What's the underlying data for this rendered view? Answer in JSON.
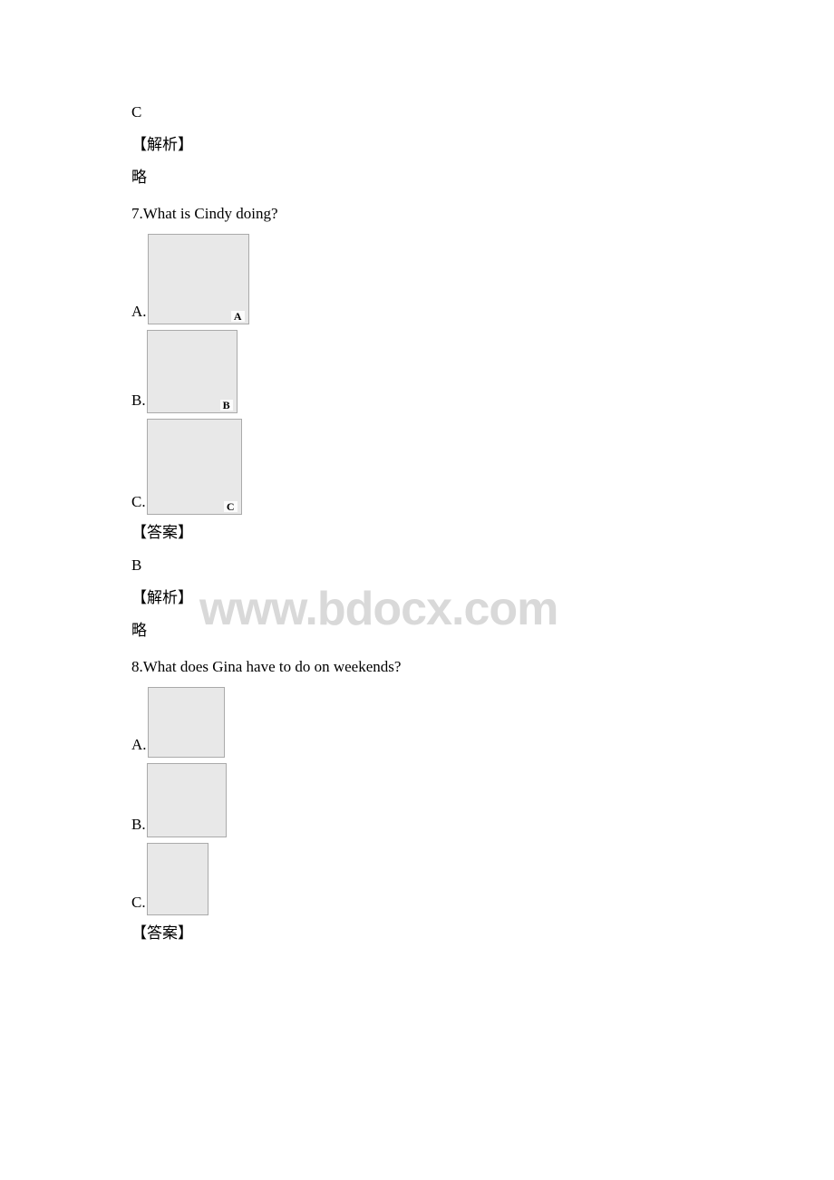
{
  "watermark": "www.bdocx.com",
  "q_prev": {
    "answer_letter": "C",
    "analysis_label": "【解析】",
    "analysis_text": "略"
  },
  "answer_label": "【答案】",
  "q7": {
    "number_text": "7.What is Cindy doing?",
    "options": [
      {
        "letter": "A.",
        "corner": "A",
        "size_class": "q7a"
      },
      {
        "letter": "B.",
        "corner": "B",
        "size_class": "q7b"
      },
      {
        "letter": "C.",
        "corner": "C",
        "size_class": "q7c"
      }
    ],
    "answer_letter": "B",
    "analysis_label": "【解析】",
    "analysis_text": "略"
  },
  "q8": {
    "number_text": "8.What does Gina have to do on weekends?",
    "options": [
      {
        "letter": "A.",
        "corner": "",
        "size_class": "q8a"
      },
      {
        "letter": "B.",
        "corner": "",
        "size_class": "q8b"
      },
      {
        "letter": "C.",
        "corner": "",
        "size_class": "q8c"
      }
    ]
  }
}
